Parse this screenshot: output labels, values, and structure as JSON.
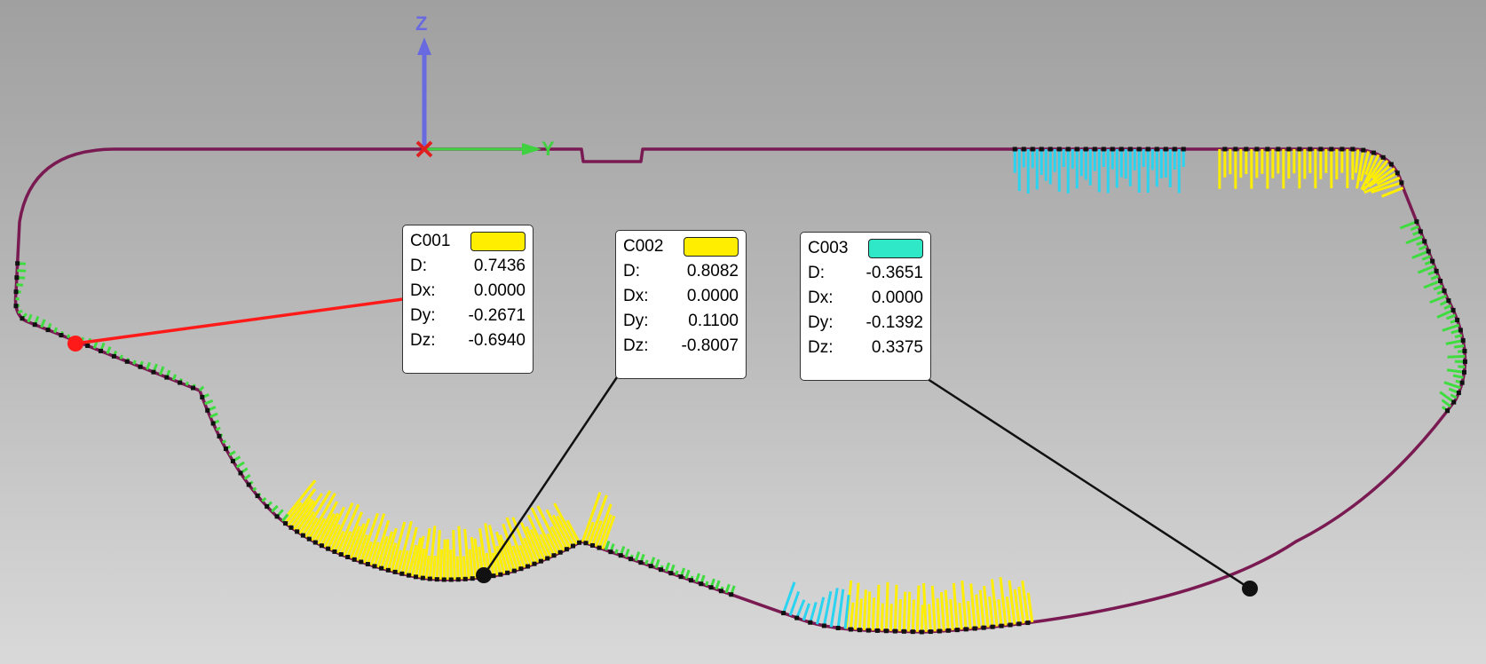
{
  "axes": {
    "z_label": "Z",
    "y_label": "Y",
    "colors": {
      "z": "#6a6ae0",
      "y": "#3fd13f",
      "x": "#e02020"
    }
  },
  "colors": {
    "profile": "#7a1a52",
    "positive_deviation": "#ffee00",
    "negative_deviation": "#2ad4f0",
    "in_tolerance": "#3fdc3f",
    "leader_selected": "#ff1a1a",
    "leader": "#111111"
  },
  "callouts": [
    {
      "id": "C001",
      "swatch_color": "#ffee00",
      "rows": [
        {
          "label": "D:",
          "value": "0.7436"
        },
        {
          "label": "Dx:",
          "value": "0.0000"
        },
        {
          "label": "Dy:",
          "value": "-0.2671"
        },
        {
          "label": "Dz:",
          "value": "-0.6940"
        }
      ]
    },
    {
      "id": "C002",
      "swatch_color": "#ffee00",
      "rows": [
        {
          "label": "D:",
          "value": "0.8082"
        },
        {
          "label": "Dx:",
          "value": "0.0000"
        },
        {
          "label": "Dy:",
          "value": "0.1100"
        },
        {
          "label": "Dz:",
          "value": "-0.8007"
        }
      ]
    },
    {
      "id": "C003",
      "swatch_color": "#2ee8c8",
      "rows": [
        {
          "label": "D:",
          "value": "-0.3651"
        },
        {
          "label": "Dx:",
          "value": "0.0000"
        },
        {
          "label": "Dy:",
          "value": "-0.1392"
        },
        {
          "label": "Dz:",
          "value": "0.3375"
        }
      ]
    }
  ]
}
